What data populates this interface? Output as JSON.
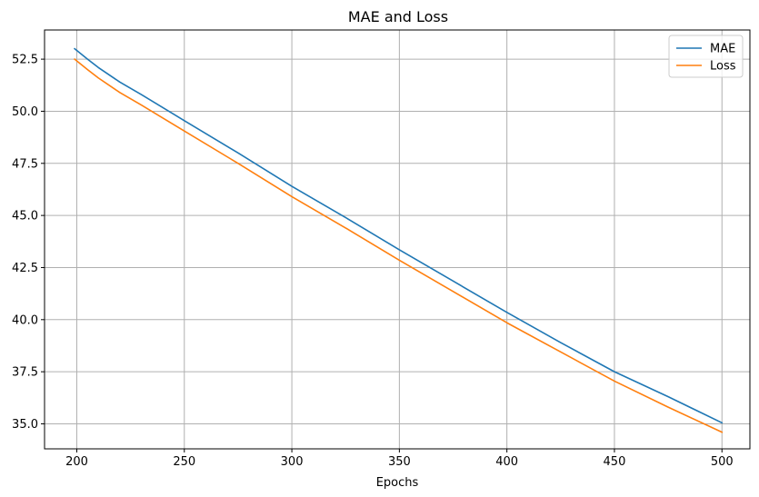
{
  "chart_data": {
    "type": "line",
    "title": "MAE and Loss",
    "xlabel": "Epochs",
    "ylabel": "",
    "xlim": [
      185,
      513
    ],
    "ylim": [
      33.8,
      53.9
    ],
    "xticks": [
      200,
      250,
      300,
      350,
      400,
      450,
      500
    ],
    "yticks": [
      35.0,
      37.5,
      40.0,
      42.5,
      45.0,
      47.5,
      50.0,
      52.5
    ],
    "ytick_labels": [
      "35.0",
      "37.5",
      "40.0",
      "42.5",
      "45.0",
      "47.5",
      "50.0",
      "52.5"
    ],
    "grid": true,
    "legend": "top-right",
    "series": [
      {
        "name": "MAE",
        "color": "#1f77b4",
        "x": [
          199,
          205,
          210,
          220,
          230,
          250,
          275,
          300,
          325,
          350,
          375,
          400,
          425,
          450,
          475,
          500
        ],
        "y": [
          53.0,
          52.5,
          52.1,
          51.4,
          50.8,
          49.55,
          48.0,
          46.4,
          44.9,
          43.35,
          41.85,
          40.35,
          38.9,
          37.5,
          36.3,
          35.05
        ]
      },
      {
        "name": "Loss",
        "color": "#ff7f0e",
        "x": [
          199,
          205,
          210,
          220,
          230,
          250,
          275,
          300,
          325,
          350,
          375,
          400,
          425,
          450,
          475,
          500
        ],
        "y": [
          52.5,
          52.0,
          51.6,
          50.9,
          50.3,
          49.05,
          47.5,
          45.9,
          44.4,
          42.85,
          41.35,
          39.85,
          38.45,
          37.05,
          35.8,
          34.6
        ]
      }
    ]
  }
}
